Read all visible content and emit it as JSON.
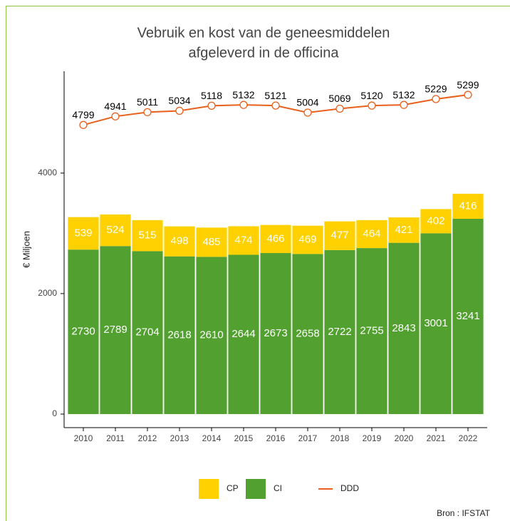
{
  "chart_data": {
    "type": "bar",
    "stacked": true,
    "title": [
      "Vebruik en kost van de geneesmiddelen",
      "afgeleverd in de officina"
    ],
    "y_label": "€ Miljoen",
    "source": "Bron : IFSTAT",
    "categories": [
      "2010",
      "2011",
      "2012",
      "2013",
      "2014",
      "2015",
      "2016",
      "2017",
      "2018",
      "2019",
      "2020",
      "2021",
      "2022"
    ],
    "series": [
      {
        "name": "CI",
        "color": "#52a02f",
        "values": [
          2730,
          2789,
          2704,
          2618,
          2610,
          2644,
          2673,
          2658,
          2722,
          2755,
          2843,
          3001,
          3241
        ]
      },
      {
        "name": "CP",
        "color": "#ffd100",
        "values": [
          539,
          524,
          515,
          498,
          485,
          474,
          466,
          469,
          477,
          464,
          421,
          402,
          416
        ]
      },
      {
        "name": "DDD",
        "type": "line",
        "color": "#e8601c",
        "values": [
          4799,
          4941,
          5011,
          5034,
          5118,
          5132,
          5121,
          5004,
          5069,
          5120,
          5132,
          5229,
          5299
        ]
      }
    ],
    "legend_order": [
      1,
      0,
      2
    ],
    "ylim": [
      -225,
      5690
    ],
    "yticks": [
      0,
      2000,
      4000
    ],
    "grid": false
  }
}
